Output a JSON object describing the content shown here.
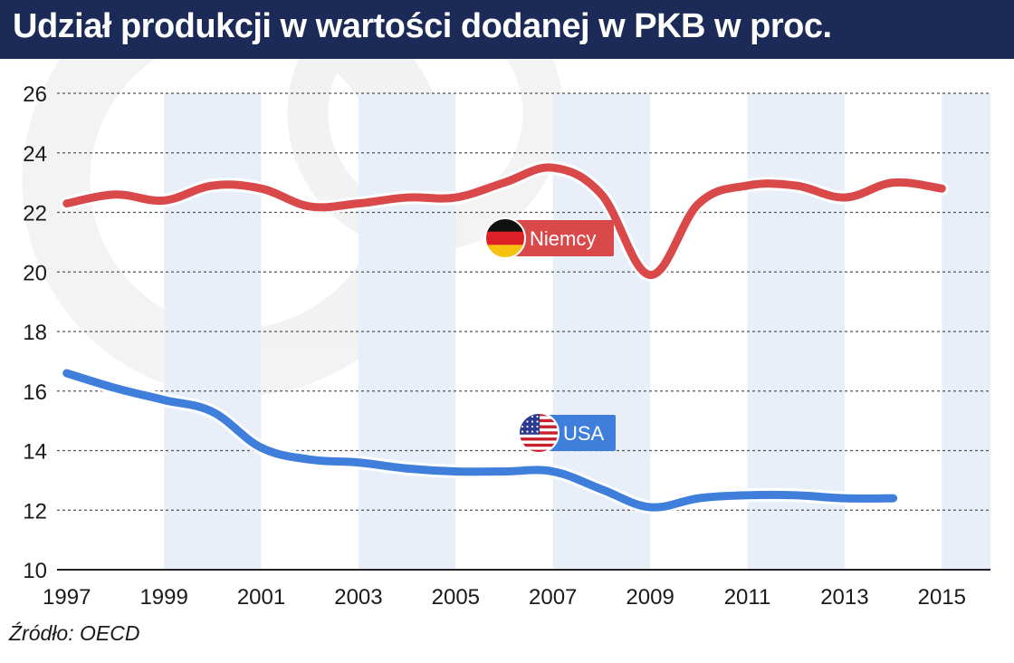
{
  "title": "Udział produkcji w wartości dodanej w PKB w proc.",
  "source": "Źródło: OECD",
  "colors": {
    "header_bg": "#1b2a57",
    "germany": "#d9494a",
    "usa": "#3f7fdb",
    "band": "#e8eff9"
  },
  "chart_data": {
    "type": "line",
    "title": "Udział produkcji w wartości dodanej w PKB w proc.",
    "ylim": [
      10,
      26
    ],
    "yticks": [
      10,
      12,
      14,
      16,
      18,
      20,
      22,
      24,
      26
    ],
    "xlim": [
      1996.8,
      2016.0
    ],
    "xticks": [
      "1997",
      "1999",
      "2001",
      "2003",
      "2005",
      "2007",
      "2009",
      "2011",
      "2013",
      "2015"
    ],
    "grid": true,
    "series": [
      {
        "name": "Niemcy",
        "icon": "germany-flag-icon",
        "x": [
          1997,
          1998,
          1999,
          2000,
          2001,
          2002,
          2003,
          2004,
          2005,
          2006,
          2007,
          2008,
          2009,
          2010,
          2011,
          2012,
          2013,
          2014,
          2015
        ],
        "values": [
          22.3,
          22.6,
          22.4,
          22.9,
          22.8,
          22.2,
          22.3,
          22.5,
          22.5,
          23.0,
          23.5,
          22.6,
          19.9,
          22.3,
          22.9,
          22.9,
          22.5,
          23.0,
          22.8
        ]
      },
      {
        "name": "USA",
        "icon": "usa-flag-icon",
        "x": [
          1997,
          1998,
          1999,
          2000,
          2001,
          2002,
          2003,
          2004,
          2005,
          2006,
          2007,
          2008,
          2009,
          2010,
          2011,
          2012,
          2013,
          2014
        ],
        "values": [
          16.6,
          16.1,
          15.7,
          15.3,
          14.1,
          13.7,
          13.6,
          13.4,
          13.3,
          13.3,
          13.3,
          12.7,
          12.1,
          12.4,
          12.5,
          12.5,
          12.4,
          12.4
        ]
      }
    ]
  }
}
